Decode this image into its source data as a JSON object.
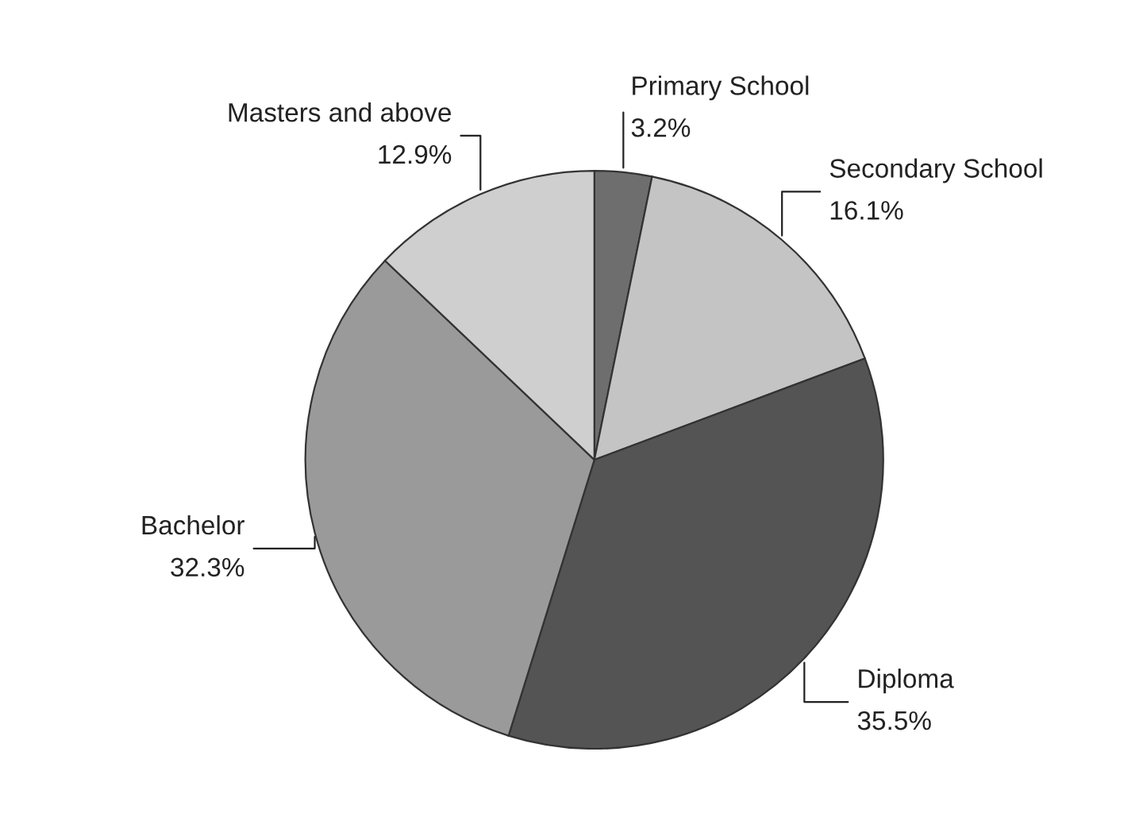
{
  "chart_data": {
    "type": "pie",
    "categories": [
      "Primary School",
      "Secondary School",
      "Diploma",
      "Bachelor",
      "Masters and above"
    ],
    "values": [
      3.2,
      16.1,
      35.5,
      32.3,
      12.9
    ],
    "value_labels": [
      "3.2%",
      "16.1%",
      "35.5%",
      "32.3%",
      "12.9%"
    ],
    "colors": [
      "#6e6e6e",
      "#c4c4c4",
      "#545454",
      "#9a9a9a",
      "#cfcfcf"
    ],
    "legend": false
  }
}
